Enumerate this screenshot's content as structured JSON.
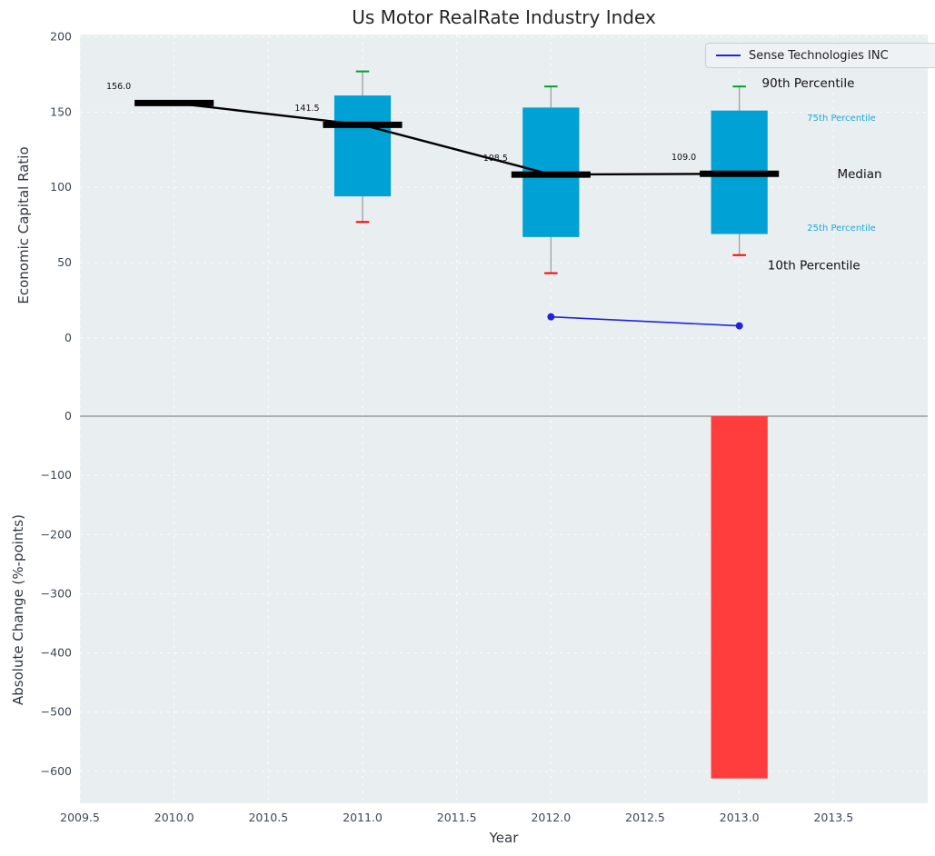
{
  "title": "Us Motor RealRate Industry Index",
  "colors": {
    "axes_bg": "#e9eef0",
    "grid": "#ffffff",
    "box_fill": "#00a1d4",
    "median": "#000000",
    "whisker": "#9a9a9a",
    "cap_top": "#00a02e",
    "cap_bottom": "#ff0000",
    "company_line": "#2222dd",
    "bar": "#ff3d3d",
    "zero_line": "#8a8a8a",
    "tick_text": "#3d4754",
    "percentile_text": "#1ba8d5",
    "annotation_text": "#111111"
  },
  "chart_data": [
    {
      "type": "boxplot",
      "title": "Us Motor RealRate Industry Index",
      "xlabel": "Year",
      "ylabel": "Economic Capital Ratio",
      "xlim": [
        2009.5,
        2014.0
      ],
      "ylim": [
        -52,
        201.5
      ],
      "grid": true,
      "legend_position": "upper right",
      "xticks": {
        "values": [
          2009.5,
          2010.0,
          2010.5,
          2011.0,
          2011.5,
          2012.0,
          2012.5,
          2013.0,
          2013.5
        ],
        "labels": [
          "2009.5",
          "2010.0",
          "2010.5",
          "2011.0",
          "2011.5",
          "2012.0",
          "2012.5",
          "2013.0",
          "2013.5"
        ]
      },
      "yticks": {
        "values": [
          0,
          50,
          100,
          150,
          200
        ],
        "labels": [
          "0",
          "50",
          "100",
          "150",
          "200"
        ]
      },
      "boxes": [
        {
          "year": 2010,
          "median": 156.0,
          "label": "156.0"
        },
        {
          "year": 2011,
          "median": 141.5,
          "q1": 94,
          "q3": 161,
          "whisker_low": 77,
          "whisker_high": 177,
          "label": "141.5"
        },
        {
          "year": 2012,
          "median": 108.5,
          "q1": 67,
          "q3": 153,
          "whisker_low": 43,
          "whisker_high": 167,
          "label": "108.5"
        },
        {
          "year": 2013,
          "median": 109.0,
          "q1": 69,
          "q3": 151,
          "whisker_low": 55,
          "whisker_high": 167,
          "label": "109.0"
        }
      ],
      "median_series": {
        "name": "Median",
        "x": [
          2010,
          2011,
          2012,
          2013
        ],
        "y": [
          156.0,
          141.5,
          108.5,
          109.0
        ]
      },
      "company_series": {
        "name": "Sense Technologies INC",
        "x": [
          2012,
          2013
        ],
        "y": [
          14,
          8
        ]
      },
      "annotations": [
        {
          "text": "90th Percentile",
          "x": 2013.12,
          "y": 169,
          "size": 13.5,
          "color": "#111111"
        },
        {
          "text": "75th Percentile",
          "x": 2013.36,
          "y": 146,
          "size": 10,
          "color": "#1ba8d5"
        },
        {
          "text": "Median",
          "x": 2013.52,
          "y": 108.5,
          "size": 13.5,
          "color": "#111111"
        },
        {
          "text": "25th Percentile",
          "x": 2013.36,
          "y": 73,
          "size": 10,
          "color": "#1ba8d5"
        },
        {
          "text": "10th Percentile",
          "x": 2013.15,
          "y": 48,
          "size": 13.5,
          "color": "#111111"
        }
      ]
    },
    {
      "type": "bar",
      "ylabel": "Absolute Change (%-points)",
      "xlim": [
        2009.5,
        2014.0
      ],
      "ylim": [
        -654,
        0
      ],
      "grid": true,
      "zero_line": true,
      "bar_width": 0.3,
      "yticks": {
        "values": [
          0,
          -100,
          -200,
          -300,
          -400,
          -500,
          -600
        ],
        "labels": [
          "0",
          "−100",
          "−200",
          "−300",
          "−400",
          "−500",
          "−600"
        ]
      },
      "bars": [
        {
          "x": 2013,
          "value": -612
        }
      ]
    }
  ]
}
